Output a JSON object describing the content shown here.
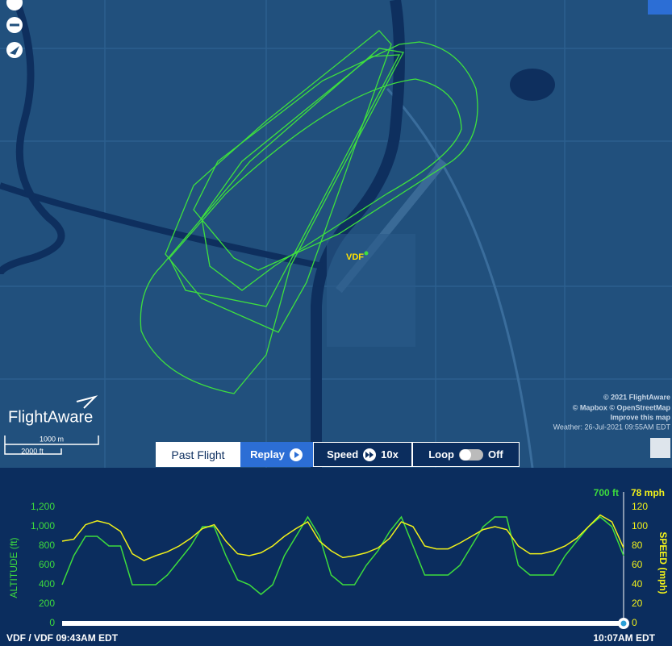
{
  "map": {
    "airport_label": "VDF",
    "logo": "FlightAware",
    "scale": [
      "1000 m",
      "2000 ft"
    ],
    "attribution": [
      "© 2021 FlightAware",
      "© Mapbox © OpenStreetMap",
      "Improve this map",
      "Weather: 26-Jul-2021 09:55AM EDT"
    ]
  },
  "controls": {
    "past_flight": "Past Flight",
    "replay": "Replay",
    "speed": "Speed",
    "speed_value": "10x",
    "loop": "Loop",
    "loop_value": "Off"
  },
  "chart_data": {
    "type": "line",
    "start_label": "VDF / VDF 09:43AM EDT",
    "end_label": "10:07AM EDT",
    "ylabel": "ALTITUDE (ft)",
    "y2label": "SPEED (mph)",
    "current_altitude": "700 ft",
    "current_speed": "78 mph",
    "ylim": [
      0,
      1200
    ],
    "yticks": [
      0,
      200,
      400,
      600,
      800,
      {
        "value": 1000,
        "label": "1,000"
      },
      {
        "value": 1200,
        "label": "1,200"
      }
    ],
    "y2lim": [
      0,
      120
    ],
    "y2ticks": [
      0,
      20,
      40,
      60,
      80,
      100,
      120
    ],
    "series": [
      {
        "name": "ALTITUDE (ft)",
        "color": "#3ddc3d",
        "values": [
          400,
          700,
          900,
          900,
          800,
          800,
          400,
          400,
          400,
          500,
          650,
          800,
          1000,
          1000,
          700,
          450,
          400,
          300,
          400,
          700,
          900,
          1100,
          900,
          500,
          400,
          400,
          600,
          750,
          950,
          1100,
          800,
          500,
          500,
          500,
          600,
          800,
          1000,
          1100,
          1100,
          600,
          500,
          500,
          500,
          700,
          850,
          1000,
          1100,
          1000,
          700
        ]
      },
      {
        "name": "SPEED (mph)",
        "color": "#f2f21a",
        "axis": "y2",
        "values": [
          85,
          87,
          102,
          106,
          103,
          95,
          72,
          65,
          70,
          74,
          80,
          88,
          98,
          102,
          85,
          72,
          70,
          73,
          80,
          90,
          98,
          105,
          85,
          75,
          68,
          70,
          73,
          78,
          88,
          105,
          100,
          80,
          77,
          77,
          83,
          90,
          97,
          100,
          97,
          80,
          72,
          72,
          75,
          80,
          88,
          100,
          112,
          105,
          78
        ]
      }
    ]
  }
}
